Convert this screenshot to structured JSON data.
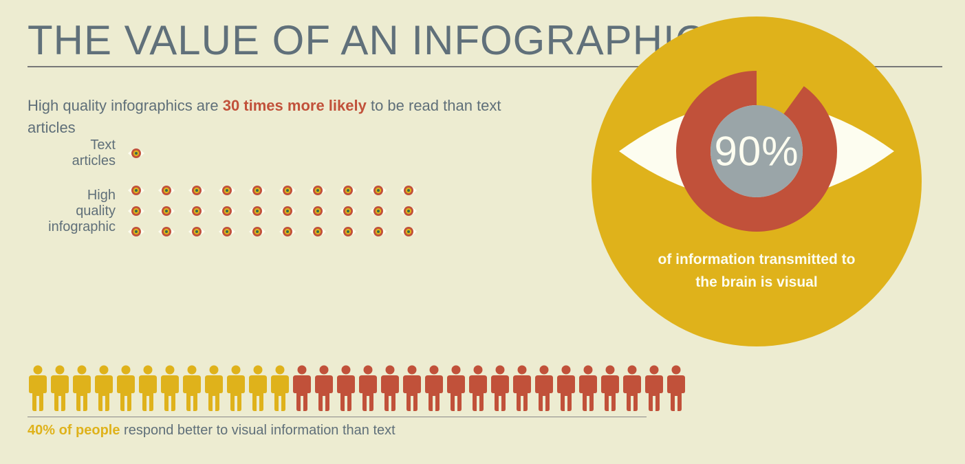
{
  "colors": {
    "background": "#edecd1",
    "text": "#5f6f79",
    "accent_red": "#c1513a",
    "accent_gold": "#dfb21b",
    "white": "#fdfdf0",
    "rule": "#777777",
    "eye_center_gray": "#9aa5a8"
  },
  "title": "THE VALUE OF AN INFOGRAPHIC",
  "title_fontsize": 60,
  "subtitle": {
    "pre": "High quality infographics are ",
    "emph": "30 times more likely",
    "post": " to be read than text articles",
    "fontsize": 22
  },
  "comparison": {
    "rows": [
      {
        "label": "Text\narticles",
        "count": 1
      },
      {
        "label": "High\nquality\ninfographic",
        "count": 30
      }
    ],
    "eye_cols_per_row": 10,
    "small_eye": {
      "sclera_color": "#fdfdf0",
      "iris_outer_color": "#c1513a",
      "iris_mid_color": "#dfb21b",
      "pupil_color": "#3c6a4a"
    }
  },
  "big_eye": {
    "circle_diameter": 480,
    "circle_bg": "#dfb21b",
    "sclera_color": "#fdfdf0",
    "iris_ring_color": "#c1513a",
    "gap_color": "#dfb21b",
    "pupil_color": "#9aa5a8",
    "percent_value": 90,
    "percent_label": "90%",
    "percent_fontsize": 60,
    "caption_line1": "of information transmitted to",
    "caption_line2": "the brain is visual",
    "caption_fontsize": 21,
    "gap_start_deg": -90,
    "gap_sweep_deg": 36
  },
  "people": {
    "total": 30,
    "highlighted": 12,
    "highlight_color": "#dfb21b",
    "rest_color": "#c1513a",
    "caption_emph": "40% of people",
    "caption_rest": " respond better to visual information than text",
    "fontsize": 20
  }
}
